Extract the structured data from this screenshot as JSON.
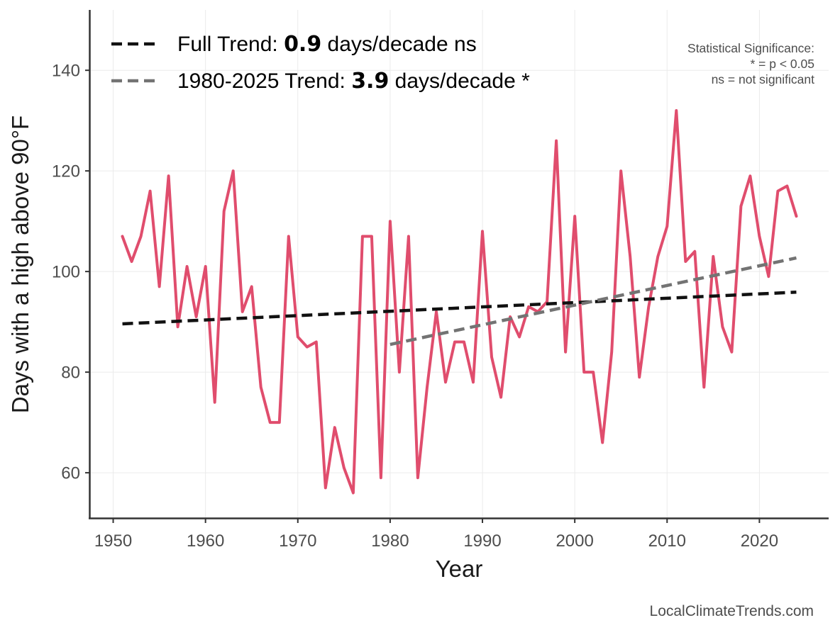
{
  "chart_data": {
    "type": "line",
    "title": "",
    "xlabel": "Year",
    "ylabel": "Days with a high above 90°F",
    "xlim": [
      1947.5,
      2027.5
    ],
    "ylim": [
      51,
      152
    ],
    "xticks": [
      1950,
      1960,
      1970,
      1980,
      1990,
      2000,
      2010,
      2020
    ],
    "xtick_labels": [
      "1950",
      "1960",
      "1970",
      "1980",
      "1990",
      "2000",
      "2010",
      "2020"
    ],
    "yticks": [
      60,
      80,
      100,
      120,
      140
    ],
    "ytick_labels": [
      "60",
      "80",
      "100",
      "120",
      "140"
    ],
    "grid": true,
    "series": [
      {
        "name": "Days with a high above 90°F",
        "color": "#e04d6d",
        "x": [
          1951,
          1952,
          1953,
          1954,
          1955,
          1956,
          1957,
          1958,
          1959,
          1960,
          1961,
          1962,
          1963,
          1964,
          1965,
          1966,
          1967,
          1968,
          1969,
          1970,
          1971,
          1972,
          1973,
          1974,
          1975,
          1976,
          1977,
          1978,
          1979,
          1980,
          1981,
          1982,
          1983,
          1984,
          1985,
          1986,
          1987,
          1988,
          1989,
          1990,
          1991,
          1992,
          1993,
          1994,
          1995,
          1996,
          1997,
          1998,
          1999,
          2000,
          2001,
          2002,
          2003,
          2004,
          2005,
          2006,
          2007,
          2008,
          2009,
          2010,
          2011,
          2012,
          2013,
          2014,
          2015,
          2016,
          2017,
          2018,
          2019,
          2020,
          2021,
          2022,
          2023,
          2024
        ],
        "values": [
          107,
          102,
          107,
          116,
          97,
          119,
          89,
          101,
          91,
          101,
          74,
          112,
          120,
          92,
          97,
          77,
          70,
          70,
          107,
          87,
          85,
          86,
          57,
          69,
          61,
          56,
          107,
          107,
          59,
          110,
          80,
          107,
          59,
          77,
          92,
          78,
          86,
          86,
          78,
          108,
          83,
          75,
          91,
          87,
          93,
          92,
          94,
          126,
          84,
          111,
          80,
          80,
          66,
          84,
          120,
          103,
          79,
          93,
          103,
          109,
          132,
          102,
          104,
          77,
          103,
          89,
          84,
          113,
          119,
          107,
          99,
          116,
          117,
          111
        ]
      }
    ],
    "trend_lines": [
      {
        "name": "Full Trend",
        "color": "#111111",
        "x": [
          1951,
          2024
        ],
        "y": [
          89.6,
          95.9
        ],
        "rate": 0.9,
        "significance": "ns"
      },
      {
        "name": "1980-2025 Trend",
        "color": "#737373",
        "x": [
          1980,
          2024
        ],
        "y": [
          85.5,
          102.7
        ],
        "rate": 3.9,
        "significance": "*"
      }
    ],
    "legend": {
      "placement": "top-left",
      "entries": [
        {
          "prefix": "Full Trend: ",
          "value": "0.9",
          "suffix": " days/decade ns"
        },
        {
          "prefix": "1980-2025 Trend: ",
          "value": "3.9",
          "suffix": " days/decade *"
        }
      ]
    },
    "annotations": {
      "significance_title": "Statistical Significance:",
      "significance_star": "* = p < 0.05",
      "significance_ns": "ns = not significant"
    }
  },
  "credit": "LocalClimateTrends.com"
}
